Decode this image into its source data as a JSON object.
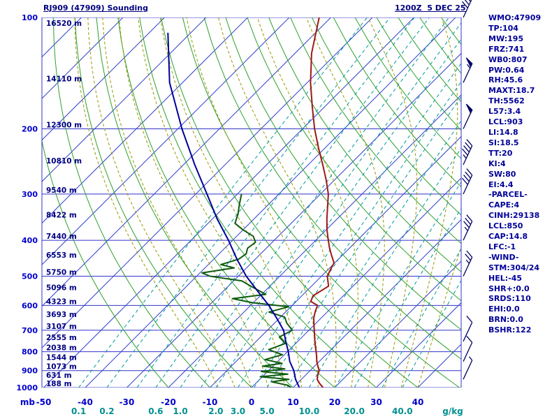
{
  "header": {
    "title": "RJ909 (47909) Sounding",
    "datetime": "1200Z  5 DEC 25"
  },
  "axes": {
    "pressure_unit": "mb",
    "pressure_ticks": [
      100,
      200,
      300,
      400,
      500,
      600,
      700,
      800,
      900,
      1000
    ],
    "height_labels": [
      {
        "p": 100,
        "label": "16520 m"
      },
      {
        "p": 150,
        "label": "14110 m"
      },
      {
        "p": 200,
        "label": "12300 m"
      },
      {
        "p": 250,
        "label": "10810 m"
      },
      {
        "p": 300,
        "label": "9540 m"
      },
      {
        "p": 350,
        "label": "8422 m"
      },
      {
        "p": 400,
        "label": "7440 m"
      },
      {
        "p": 450,
        "label": "6553 m"
      },
      {
        "p": 500,
        "label": "5750 m"
      },
      {
        "p": 550,
        "label": "5096 m"
      },
      {
        "p": 600,
        "label": "4323 m"
      },
      {
        "p": 650,
        "label": "3693 m"
      },
      {
        "p": 700,
        "label": "3107 m"
      },
      {
        "p": 750,
        "label": "2555 m"
      },
      {
        "p": 800,
        "label": "2038 m"
      },
      {
        "p": 850,
        "label": "1544 m"
      },
      {
        "p": 900,
        "label": "1073 m"
      },
      {
        "p": 950,
        "label": "631 m"
      },
      {
        "p": 1000,
        "label": "188 m"
      }
    ],
    "temp_ticks_c": [
      -50,
      -40,
      -30,
      -20,
      -10,
      0,
      10,
      20,
      30,
      40
    ],
    "mixing_ratio_ticks": [
      "0.1",
      "0.2",
      "0.6",
      "1.0",
      "2.0",
      "3.0",
      "5.0",
      "10.0",
      "20.0",
      "40.0"
    ],
    "mixing_ratio_unit": "g/kg"
  },
  "stats_panel": {
    "lines": [
      "WMO:47909",
      "TP:104",
      "MW:195",
      "FRZ:741",
      "WB0:807",
      "PW:0.64",
      "RH:45.6",
      "MAXT:18.7",
      "TH:5562",
      "L57:3.4",
      "LCL:903",
      "LI:14.8",
      "SI:18.5",
      "TT:20",
      "KI:4",
      "SW:80",
      "EI:4.4",
      "-PARCEL-",
      "CAPE:4",
      "CINH:29138",
      "LCL:850",
      "CAP:14.8",
      "LFC:-1",
      "-WIND-",
      "STM:304/24",
      "HEL:-45",
      "SHR+:0.0",
      "SRDS:110",
      "EHI:0.0",
      "BRN:0.0",
      "BSHR:122"
    ]
  },
  "chart_data": {
    "type": "line",
    "variant": "skew-t-log-p",
    "title": "RJ909 (47909) Sounding",
    "pressure_range_mb": [
      100,
      1000
    ],
    "surface_temp_axis_range_c": [
      -50,
      40
    ],
    "skew_deg": 45,
    "grid": {
      "isotherm_step_c": 10,
      "isobar_color": "#3333cc",
      "isotherm_color": "#3344cc",
      "dry_adiabat_color": "#2ca02c",
      "moist_adiabat_color": "#989800",
      "mixing_ratio_color": "#009999",
      "mixing_ratio_lines_drawn": [
        0.1,
        0.2,
        0.4,
        0.6,
        1,
        1.5,
        2,
        3,
        4,
        5,
        7,
        10,
        15,
        20,
        30,
        40
      ]
    },
    "series": [
      {
        "name": "temperature",
        "color": "#a01818",
        "points": [
          [
            1005,
            17.6
          ],
          [
            1000,
            17.2
          ],
          [
            975,
            15.4
          ],
          [
            950,
            13.8
          ],
          [
            925,
            12.9
          ],
          [
            900,
            12.2
          ],
          [
            875,
            10.8
          ],
          [
            850,
            9.4
          ],
          [
            825,
            8.2
          ],
          [
            800,
            6.9
          ],
          [
            775,
            5.5
          ],
          [
            750,
            4.1
          ],
          [
            725,
            2.7
          ],
          [
            700,
            1.3
          ],
          [
            675,
            -0.2
          ],
          [
            650,
            -1.7
          ],
          [
            625,
            -2.9
          ],
          [
            600,
            -3.9
          ],
          [
            585,
            -6.5
          ],
          [
            565,
            -7.3
          ],
          [
            532,
            -5.9
          ],
          [
            500,
            -8.6
          ],
          [
            480,
            -9.4
          ],
          [
            460,
            -10.2
          ],
          [
            440,
            -12.5
          ],
          [
            420,
            -14.8
          ],
          [
            400,
            -17.0
          ],
          [
            375,
            -19.8
          ],
          [
            350,
            -22.5
          ],
          [
            325,
            -25.2
          ],
          [
            300,
            -28.1
          ],
          [
            275,
            -32.0
          ],
          [
            250,
            -36.5
          ],
          [
            225,
            -41.6
          ],
          [
            200,
            -47.1
          ],
          [
            175,
            -52.8
          ],
          [
            150,
            -59.2
          ],
          [
            125,
            -66.0
          ],
          [
            100,
            -72.8
          ]
        ]
      },
      {
        "name": "dewpoint",
        "color": "#0e5c0e",
        "points": [
          [
            1005,
            9.6
          ],
          [
            1000,
            9.5
          ],
          [
            985,
            8.0
          ],
          [
            965,
            3.5
          ],
          [
            950,
            7.0
          ],
          [
            935,
            -0.5
          ],
          [
            920,
            5.5
          ],
          [
            905,
            -1.5
          ],
          [
            890,
            3.5
          ],
          [
            875,
            -2.5
          ],
          [
            860,
            1.5
          ],
          [
            840,
            -3.5
          ],
          [
            815,
            -0.5
          ],
          [
            790,
            -5.0
          ],
          [
            760,
            -2.5
          ],
          [
            730,
            -5.5
          ],
          [
            700,
            -4.0
          ],
          [
            670,
            -7.0
          ],
          [
            645,
            -9.0
          ],
          [
            625,
            -14.0
          ],
          [
            605,
            -10.5
          ],
          [
            590,
            -20.0
          ],
          [
            575,
            -26.0
          ],
          [
            560,
            -19.0
          ],
          [
            545,
            -22.0
          ],
          [
            530,
            -25.0
          ],
          [
            515,
            -28.0
          ],
          [
            500,
            -36.8
          ],
          [
            490,
            -39.5
          ],
          [
            475,
            -33.0
          ],
          [
            465,
            -37.0
          ],
          [
            450,
            -34.0
          ],
          [
            435,
            -33.5
          ],
          [
            420,
            -34.5
          ],
          [
            405,
            -34.0
          ],
          [
            390,
            -36.0
          ],
          [
            375,
            -40.0
          ],
          [
            360,
            -43.5
          ],
          [
            340,
            -45.0
          ],
          [
            320,
            -47.0
          ],
          [
            300,
            -49.0
          ]
        ]
      },
      {
        "name": "parcel",
        "color": "#000099",
        "points": [
          [
            1005,
            11.8
          ],
          [
            1000,
            11.5
          ],
          [
            950,
            8.6
          ],
          [
            900,
            6.1
          ],
          [
            850,
            2.9
          ],
          [
            800,
            0.2
          ],
          [
            750,
            -2.9
          ],
          [
            700,
            -6.1
          ],
          [
            650,
            -10.6
          ],
          [
            600,
            -15.6
          ],
          [
            550,
            -21.6
          ],
          [
            500,
            -28.1
          ],
          [
            450,
            -34.4
          ],
          [
            400,
            -41.0
          ],
          [
            350,
            -48.9
          ],
          [
            300,
            -57.3
          ],
          [
            250,
            -67.3
          ],
          [
            200,
            -79.0
          ],
          [
            150,
            -93.1
          ],
          [
            110,
            -105.5
          ]
        ]
      }
    ],
    "winds": [
      {
        "p": 100,
        "speed_kt": 40,
        "dir_deg": 310
      },
      {
        "p": 150,
        "speed_kt": 55,
        "dir_deg": 310
      },
      {
        "p": 200,
        "speed_kt": 50,
        "dir_deg": 305
      },
      {
        "p": 250,
        "speed_kt": 45,
        "dir_deg": 300
      },
      {
        "p": 300,
        "speed_kt": 40,
        "dir_deg": 300
      },
      {
        "p": 400,
        "speed_kt": 35,
        "dir_deg": 295
      },
      {
        "p": 500,
        "speed_kt": 25,
        "dir_deg": 295
      },
      {
        "p": 750,
        "speed_kt": 10,
        "dir_deg": 290
      },
      {
        "p": 850,
        "speed_kt": 10,
        "dir_deg": 280
      },
      {
        "p": 950,
        "speed_kt": 5,
        "dir_deg": 270
      }
    ],
    "colors": {
      "text_navy": "#000080",
      "axis_blue": "#0000cc",
      "mixing_label_teal": "#009090",
      "wind_barb": "#000066"
    }
  }
}
